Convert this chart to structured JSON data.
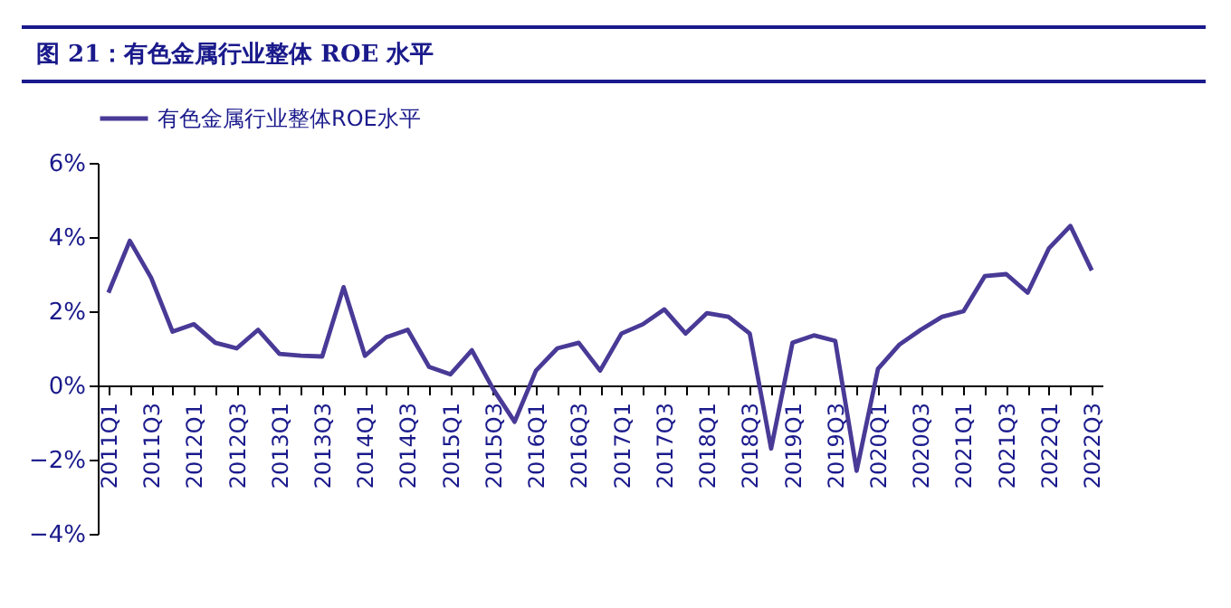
{
  "chart_data": {
    "type": "line",
    "title": "图 21：有色金属行业整体 ROE 水平",
    "categories": [
      "2011Q1",
      null,
      "2011Q3",
      null,
      "2012Q1",
      null,
      "2012Q3",
      null,
      "2013Q1",
      null,
      "2013Q3",
      null,
      "2014Q1",
      null,
      "2014Q3",
      null,
      "2015Q1",
      null,
      "2015Q3",
      null,
      "2016Q1",
      null,
      "2016Q3",
      null,
      "2017Q1",
      null,
      "2017Q3",
      null,
      "2018Q1",
      null,
      "2018Q3",
      null,
      "2019Q1",
      null,
      "2019Q3",
      null,
      "2020Q1",
      null,
      "2020Q3",
      null,
      "2021Q1",
      null,
      "2021Q3",
      null,
      "2022Q1",
      null,
      "2022Q3"
    ],
    "series": [
      {
        "name": "有色金属行业整体ROE水平",
        "color": "#483a96",
        "values": [
          2.5,
          3.9,
          2.9,
          1.45,
          1.65,
          1.15,
          1.0,
          1.5,
          0.85,
          0.8,
          0.78,
          2.65,
          0.8,
          1.3,
          1.5,
          0.5,
          0.3,
          0.95,
          -0.1,
          -0.98,
          0.4,
          1.0,
          1.15,
          0.4,
          1.4,
          1.65,
          2.05,
          1.4,
          1.95,
          1.85,
          1.4,
          -1.7,
          1.15,
          1.35,
          1.2,
          -2.3,
          0.45,
          1.1,
          1.5,
          1.85,
          2.0,
          2.95,
          3.0,
          2.5,
          3.7,
          4.3,
          3.1
        ]
      }
    ],
    "ylim": [
      -4,
      6
    ],
    "yticks": [
      {
        "value": -4,
        "label": "−4%"
      },
      {
        "value": -2,
        "label": "−2%"
      },
      {
        "value": 0,
        "label": "0%"
      },
      {
        "value": 2,
        "label": "2%"
      },
      {
        "value": 4,
        "label": "4%"
      },
      {
        "value": 6,
        "label": "6%"
      }
    ],
    "legend": "top",
    "grid": false,
    "marker": "none",
    "line_style": "solid"
  }
}
